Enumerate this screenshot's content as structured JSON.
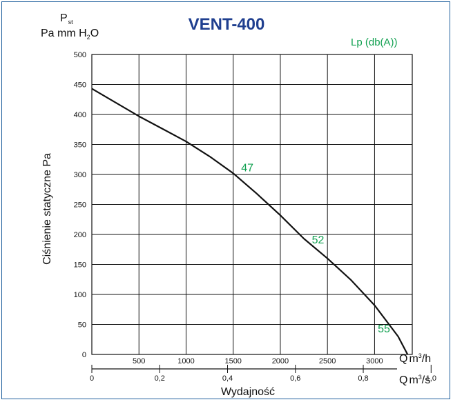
{
  "chart_data": {
    "type": "line",
    "title": "VENT-400",
    "ylabel": "Ciśnienie statyczne Pa",
    "xlabel": "Wydajność",
    "y_unit_top": {
      "symbol": "P",
      "symbol_sub": "st",
      "units": "Pa mm H",
      "units_sub": "2",
      "units_tail": "O"
    },
    "x_unit_primary": {
      "symbol": "Q",
      "unit": "m",
      "sup": "3",
      "tail": "/h"
    },
    "x_unit_secondary": {
      "symbol": "Q",
      "unit": "m",
      "sup": "3",
      "tail": "/s"
    },
    "noise_label": "Lp (db(A))",
    "ylim": [
      0,
      500
    ],
    "yticks": [
      0,
      50,
      100,
      150,
      200,
      250,
      300,
      350,
      400,
      450,
      500
    ],
    "xlim": [
      0,
      3400
    ],
    "xticks": [
      500,
      1000,
      1500,
      2000,
      2500,
      3000
    ],
    "xticks_secondary": [
      {
        "value": 0,
        "label": "0"
      },
      {
        "value": 0.2,
        "label": "0,2"
      },
      {
        "value": 0.4,
        "label": "0,4"
      },
      {
        "value": 0.6,
        "label": "0,6"
      },
      {
        "value": 0.8,
        "label": "0,8"
      },
      {
        "value": 1.0,
        "label": "1,0"
      }
    ],
    "grid": true,
    "series": [
      {
        "x": [
          0,
          250,
          500,
          750,
          1000,
          1250,
          1500,
          1750,
          2000,
          2250,
          2500,
          2750,
          3000,
          3250,
          3350
        ],
        "y": [
          443,
          420,
          397,
          376,
          355,
          330,
          302,
          268,
          232,
          193,
          160,
          124,
          82,
          30,
          0
        ],
        "color": "#111111"
      }
    ],
    "annotations": [
      {
        "x": 1650,
        "y": 305,
        "text": "47"
      },
      {
        "x": 2400,
        "y": 185,
        "text": "52"
      },
      {
        "x": 3100,
        "y": 37,
        "text": "55"
      }
    ]
  }
}
